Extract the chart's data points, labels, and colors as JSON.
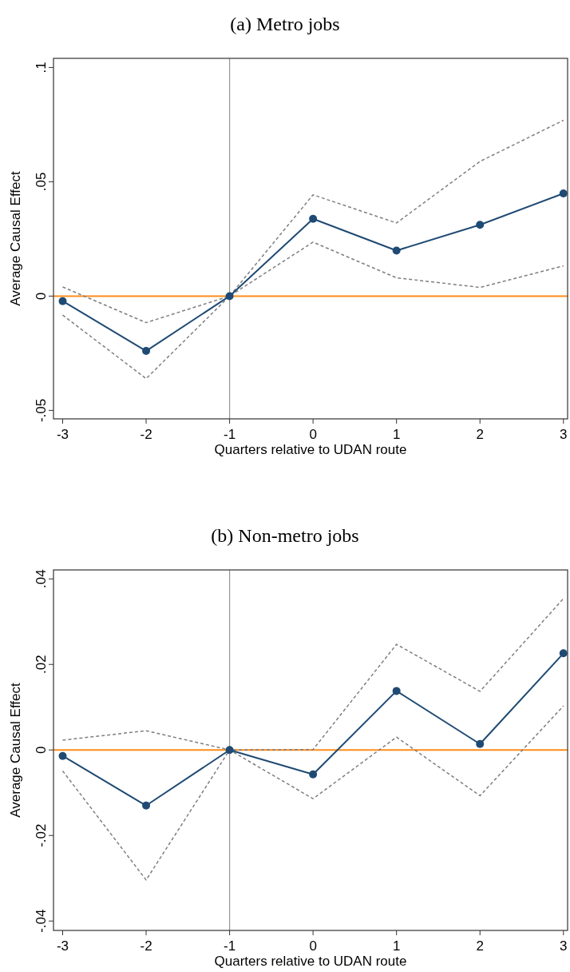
{
  "chart_data": [
    {
      "type": "line",
      "title": "(a) Metro jobs",
      "xlabel": "Quarters relative to UDAN route",
      "ylabel": "Average Causal Effect",
      "x": [
        -3,
        -2,
        -1,
        0,
        1,
        2,
        3
      ],
      "xlim": [
        -3.11,
        3.05
      ],
      "xticks": [
        -3,
        -2,
        -1,
        0,
        1,
        2,
        3
      ],
      "ylim": [
        -0.0537,
        0.104
      ],
      "yticks": [
        {
          "value": -0.05,
          "label": "-.05"
        },
        0,
        {
          "value": 0.05,
          "label": ".05"
        },
        {
          "value": 0.1,
          "label": ".1"
        }
      ],
      "series": [
        {
          "color": "#7f7f7f",
          "line_style": "dashed",
          "marker": "none",
          "values": [
            0.004,
            -0.0116,
            0,
            0.0443,
            0.032,
            0.0589,
            0.0769
          ]
        },
        {
          "color": "#7f7f7f",
          "line_style": "dashed",
          "marker": "none",
          "values": [
            -0.0083,
            -0.0361,
            0,
            0.0236,
            0.008,
            0.0038,
            0.0132
          ]
        },
        {
          "color": "#1f4a73",
          "line_style": "solid",
          "marker": "circle",
          "values": [
            -0.0022,
            -0.024,
            0,
            0.0338,
            0.0199,
            0.0312,
            0.0449
          ]
        }
      ],
      "ref_lines": [
        {
          "axis": "y",
          "value": 0,
          "color": "#ff8c1a",
          "line_style": "solid"
        },
        {
          "axis": "x",
          "value": -1,
          "color": "#999999",
          "line_style": "solid"
        }
      ]
    },
    {
      "type": "line",
      "title": "(b) Non-metro jobs",
      "xlabel": "Quarters relative to UDAN route",
      "ylabel": "Average Causal Effect",
      "x": [
        -3,
        -2,
        -1,
        0,
        1,
        2,
        3
      ],
      "xlim": [
        -3.11,
        3.05
      ],
      "xticks": [
        -3,
        -2,
        -1,
        0,
        1,
        2,
        3
      ],
      "ylim": [
        -0.0422,
        0.0421
      ],
      "yticks": [
        {
          "value": -0.04,
          "label": "-.04"
        },
        {
          "value": -0.02,
          "label": "-.02"
        },
        0,
        {
          "value": 0.02,
          "label": ".02"
        },
        {
          "value": 0.04,
          "label": ".04"
        }
      ],
      "series": [
        {
          "color": "#7f7f7f",
          "line_style": "dashed",
          "marker": "none",
          "values": [
            0.0023,
            0.0045,
            0,
            0.0001,
            0.0247,
            0.0137,
            0.0354
          ]
        },
        {
          "color": "#7f7f7f",
          "line_style": "dashed",
          "marker": "none",
          "values": [
            -0.0049,
            -0.0304,
            0,
            -0.0114,
            0.003,
            -0.0107,
            0.0103
          ]
        },
        {
          "color": "#1f4a73",
          "line_style": "solid",
          "marker": "circle",
          "values": [
            -0.0014,
            -0.013,
            0,
            -0.0057,
            0.0138,
            0.0014,
            0.0226
          ]
        }
      ],
      "ref_lines": [
        {
          "axis": "y",
          "value": 0,
          "color": "#ff8c1a",
          "line_style": "solid"
        },
        {
          "axis": "x",
          "value": -1,
          "color": "#999999",
          "line_style": "solid"
        }
      ]
    }
  ]
}
